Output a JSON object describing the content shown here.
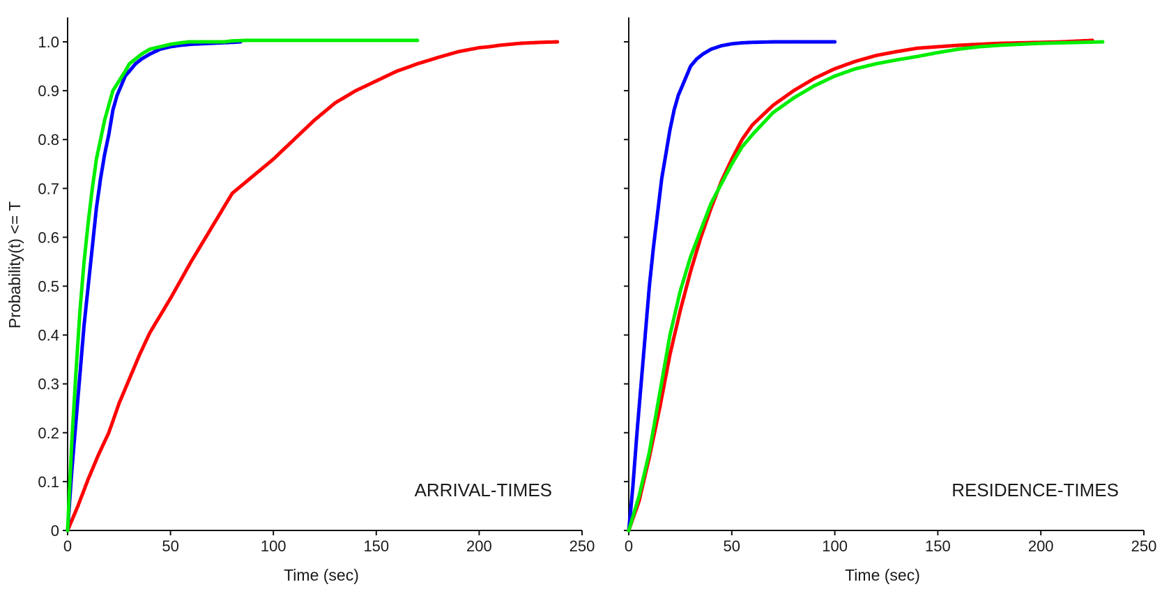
{
  "chart_data": [
    {
      "type": "scatter",
      "panel": "left",
      "annotation": "ARRIVAL-TIMES",
      "xlabel": "Time (sec)",
      "ylabel": "Probability(t) <= T",
      "xlim": [
        0,
        250
      ],
      "ylim": [
        0,
        1.05
      ],
      "xticks": [
        0,
        50,
        100,
        150,
        200,
        250
      ],
      "yticks": [
        0,
        0.1,
        0.2,
        0.3,
        0.4,
        0.5,
        0.6,
        0.7,
        0.8,
        0.9,
        1.0
      ],
      "ytick_labels": [
        "0",
        "0.1",
        "0.2",
        "0.3",
        "0.4",
        "0.5",
        "0.6",
        "0.7",
        "0.8",
        "0.9",
        "1.0"
      ],
      "grid": false,
      "legend": "none",
      "series": [
        {
          "color": "#ff0000",
          "x": [
            0,
            5,
            10,
            15,
            20,
            25,
            30,
            35,
            40,
            50,
            60,
            70,
            80,
            90,
            100,
            110,
            120,
            130,
            140,
            150,
            160,
            170,
            180,
            190,
            200,
            205,
            210,
            215,
            220,
            225,
            230,
            238
          ],
          "y": [
            0,
            0.05,
            0.105,
            0.155,
            0.2,
            0.26,
            0.31,
            0.36,
            0.405,
            0.475,
            0.55,
            0.62,
            0.69,
            0.725,
            0.76,
            0.8,
            0.84,
            0.875,
            0.9,
            0.92,
            0.94,
            0.955,
            0.968,
            0.98,
            0.988,
            0.99,
            0.993,
            0.995,
            0.997,
            0.998,
            0.999,
            1.0
          ]
        },
        {
          "color": "#0000ff",
          "x": [
            0,
            2,
            4,
            6,
            8,
            10,
            12,
            14,
            16,
            18,
            20,
            22,
            24,
            26,
            28,
            30,
            33,
            36,
            40,
            45,
            50,
            55,
            60,
            70,
            75,
            80,
            84
          ],
          "y": [
            0,
            0.12,
            0.22,
            0.32,
            0.42,
            0.5,
            0.58,
            0.66,
            0.72,
            0.77,
            0.81,
            0.86,
            0.89,
            0.91,
            0.93,
            0.94,
            0.955,
            0.965,
            0.975,
            0.985,
            0.99,
            0.993,
            0.995,
            0.997,
            0.998,
            0.999,
            1.0
          ]
        },
        {
          "color": "#00ee00",
          "x": [
            0,
            2,
            4,
            6,
            8,
            10,
            12,
            14,
            16,
            18,
            20,
            22,
            25,
            28,
            30,
            33,
            36,
            40,
            45,
            50,
            55,
            59,
            65,
            76,
            80,
            87,
            170
          ],
          "y": [
            0,
            0.18,
            0.32,
            0.45,
            0.55,
            0.63,
            0.7,
            0.76,
            0.8,
            0.84,
            0.87,
            0.9,
            0.92,
            0.94,
            0.955,
            0.965,
            0.975,
            0.985,
            0.99,
            0.995,
            0.998,
            1.0,
            1.0,
            1.0,
            1.002,
            1.003,
            1.003
          ]
        }
      ]
    },
    {
      "type": "scatter",
      "panel": "right",
      "annotation": "RESIDENCE-TIMES",
      "xlabel": "Time (sec)",
      "ylabel": "",
      "xlim": [
        0,
        250
      ],
      "ylim": [
        0,
        1.05
      ],
      "xticks": [
        0,
        50,
        100,
        150,
        200,
        250
      ],
      "yticks": [
        0,
        0.1,
        0.2,
        0.3,
        0.4,
        0.5,
        0.6,
        0.7,
        0.8,
        0.9,
        1.0
      ],
      "ytick_labels": [],
      "grid": false,
      "legend": "none",
      "series": [
        {
          "color": "#0000ff",
          "x": [
            0,
            2,
            4,
            6,
            8,
            10,
            12,
            14,
            16,
            18,
            20,
            22,
            24,
            26,
            28,
            30,
            33,
            36,
            40,
            45,
            50,
            55,
            60,
            70,
            80,
            85,
            95,
            100
          ],
          "y": [
            0,
            0.09,
            0.2,
            0.3,
            0.4,
            0.5,
            0.58,
            0.65,
            0.72,
            0.77,
            0.82,
            0.86,
            0.89,
            0.91,
            0.93,
            0.95,
            0.965,
            0.975,
            0.985,
            0.992,
            0.996,
            0.998,
            0.999,
            1.0,
            1.0,
            1.0,
            1.0,
            1.0
          ]
        },
        {
          "color": "#ff0000",
          "x": [
            0,
            5,
            10,
            15,
            20,
            25,
            30,
            35,
            40,
            45,
            50,
            55,
            60,
            70,
            80,
            90,
            100,
            110,
            120,
            130,
            140,
            150,
            160,
            170,
            180,
            190,
            200,
            210,
            220,
            225
          ],
          "y": [
            0,
            0.06,
            0.15,
            0.25,
            0.36,
            0.45,
            0.53,
            0.6,
            0.66,
            0.715,
            0.76,
            0.8,
            0.83,
            0.87,
            0.9,
            0.925,
            0.945,
            0.96,
            0.972,
            0.98,
            0.987,
            0.99,
            0.993,
            0.995,
            0.997,
            0.998,
            0.999,
            1.0,
            1.002,
            1.003
          ]
        },
        {
          "color": "#00ee00",
          "x": [
            0,
            5,
            10,
            15,
            20,
            25,
            30,
            35,
            40,
            45,
            50,
            55,
            60,
            70,
            80,
            90,
            100,
            110,
            120,
            130,
            140,
            150,
            160,
            170,
            180,
            190,
            200,
            210,
            220,
            230
          ],
          "y": [
            0,
            0.07,
            0.16,
            0.28,
            0.4,
            0.49,
            0.56,
            0.615,
            0.67,
            0.71,
            0.75,
            0.785,
            0.81,
            0.855,
            0.885,
            0.91,
            0.93,
            0.945,
            0.955,
            0.963,
            0.97,
            0.978,
            0.985,
            0.99,
            0.993,
            0.995,
            0.997,
            0.998,
            0.999,
            1.0
          ]
        }
      ]
    }
  ]
}
